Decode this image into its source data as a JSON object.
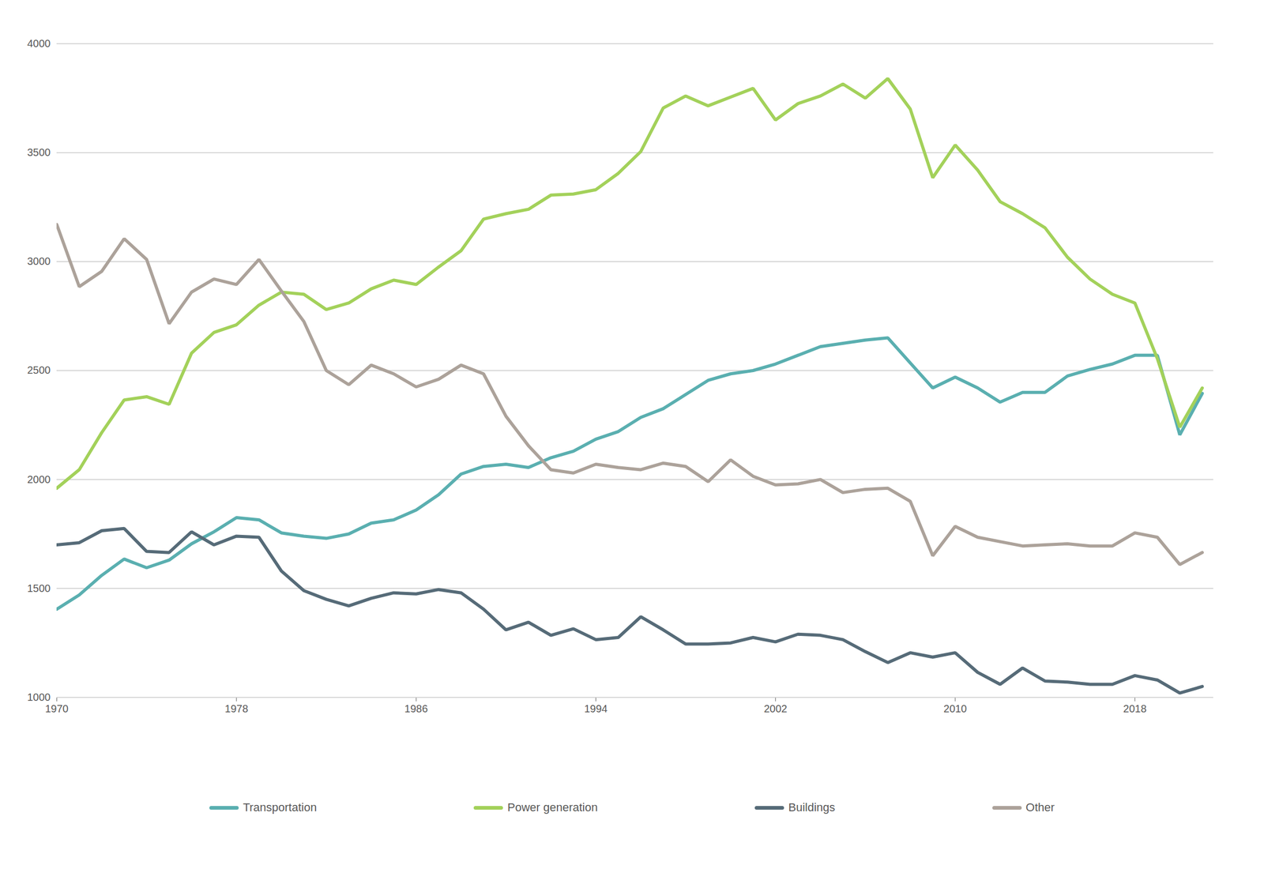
{
  "chart_data": {
    "type": "line",
    "x": [
      1970,
      1971,
      1972,
      1973,
      1974,
      1975,
      1976,
      1977,
      1978,
      1979,
      1980,
      1981,
      1982,
      1983,
      1984,
      1985,
      1986,
      1987,
      1988,
      1989,
      1990,
      1991,
      1992,
      1993,
      1994,
      1995,
      1996,
      1997,
      1998,
      1999,
      2000,
      2001,
      2002,
      2003,
      2004,
      2005,
      2006,
      2007,
      2008,
      2009,
      2010,
      2011,
      2012,
      2013,
      2014,
      2015,
      2016,
      2017,
      2018,
      2019,
      2020,
      2021
    ],
    "series": [
      {
        "name": "Transportation",
        "color": "#5aafb0",
        "values": [
          1405,
          1470,
          1560,
          1635,
          1595,
          1630,
          1705,
          1760,
          1825,
          1815,
          1755,
          1740,
          1730,
          1750,
          1800,
          1815,
          1860,
          1930,
          2025,
          2060,
          2070,
          2055,
          2100,
          2130,
          2185,
          2220,
          2285,
          2325,
          2390,
          2455,
          2485,
          2500,
          2530,
          2570,
          2610,
          2625,
          2640,
          2650,
          2535,
          2420,
          2470,
          2420,
          2355,
          2400,
          2400,
          2475,
          2505,
          2530,
          2570,
          2570,
          2205,
          2395
        ]
      },
      {
        "name": "Power generation",
        "color": "#a3d15a",
        "values": [
          1960,
          2045,
          2215,
          2365,
          2380,
          2345,
          2580,
          2675,
          2710,
          2800,
          2860,
          2850,
          2780,
          2810,
          2875,
          2915,
          2895,
          2975,
          3050,
          3195,
          3220,
          3240,
          3305,
          3310,
          3330,
          3405,
          3505,
          3705,
          3760,
          3715,
          3755,
          3795,
          3650,
          3725,
          3760,
          3815,
          3750,
          3840,
          3700,
          3385,
          3535,
          3420,
          3275,
          3220,
          3155,
          3020,
          2920,
          2850,
          2810,
          2555,
          2240,
          2420
        ]
      },
      {
        "name": "Buildings",
        "color": "#566b78",
        "values": [
          1700,
          1710,
          1765,
          1775,
          1670,
          1665,
          1760,
          1700,
          1740,
          1735,
          1580,
          1490,
          1450,
          1420,
          1455,
          1480,
          1475,
          1495,
          1480,
          1405,
          1310,
          1345,
          1285,
          1315,
          1265,
          1275,
          1370,
          1310,
          1245,
          1245,
          1250,
          1275,
          1255,
          1290,
          1285,
          1265,
          1210,
          1160,
          1205,
          1185,
          1205,
          1115,
          1060,
          1135,
          1075,
          1070,
          1060,
          1060,
          1100,
          1080,
          1020,
          1050
        ]
      },
      {
        "name": "Other",
        "color": "#aca29a",
        "values": [
          3170,
          2885,
          2955,
          3105,
          3010,
          2715,
          2860,
          2920,
          2895,
          3010,
          2865,
          2725,
          2500,
          2435,
          2525,
          2485,
          2425,
          2460,
          2525,
          2485,
          2290,
          2155,
          2045,
          2030,
          2070,
          2055,
          2045,
          2075,
          2060,
          1990,
          2090,
          2015,
          1975,
          1980,
          2000,
          1940,
          1955,
          1960,
          1900,
          1650,
          1785,
          1735,
          1715,
          1695,
          1700,
          1705,
          1695,
          1695,
          1755,
          1735,
          1610,
          1665
        ]
      }
    ],
    "xlim": [
      1970,
      2021.5
    ],
    "ylim": [
      1000,
      4000
    ],
    "xticks": [
      1970,
      1978,
      1986,
      1994,
      2002,
      2010,
      2018
    ],
    "yticks": [
      1000,
      1500,
      2000,
      2500,
      3000,
      3500,
      4000
    ],
    "grid": true,
    "legend": "bottom"
  }
}
